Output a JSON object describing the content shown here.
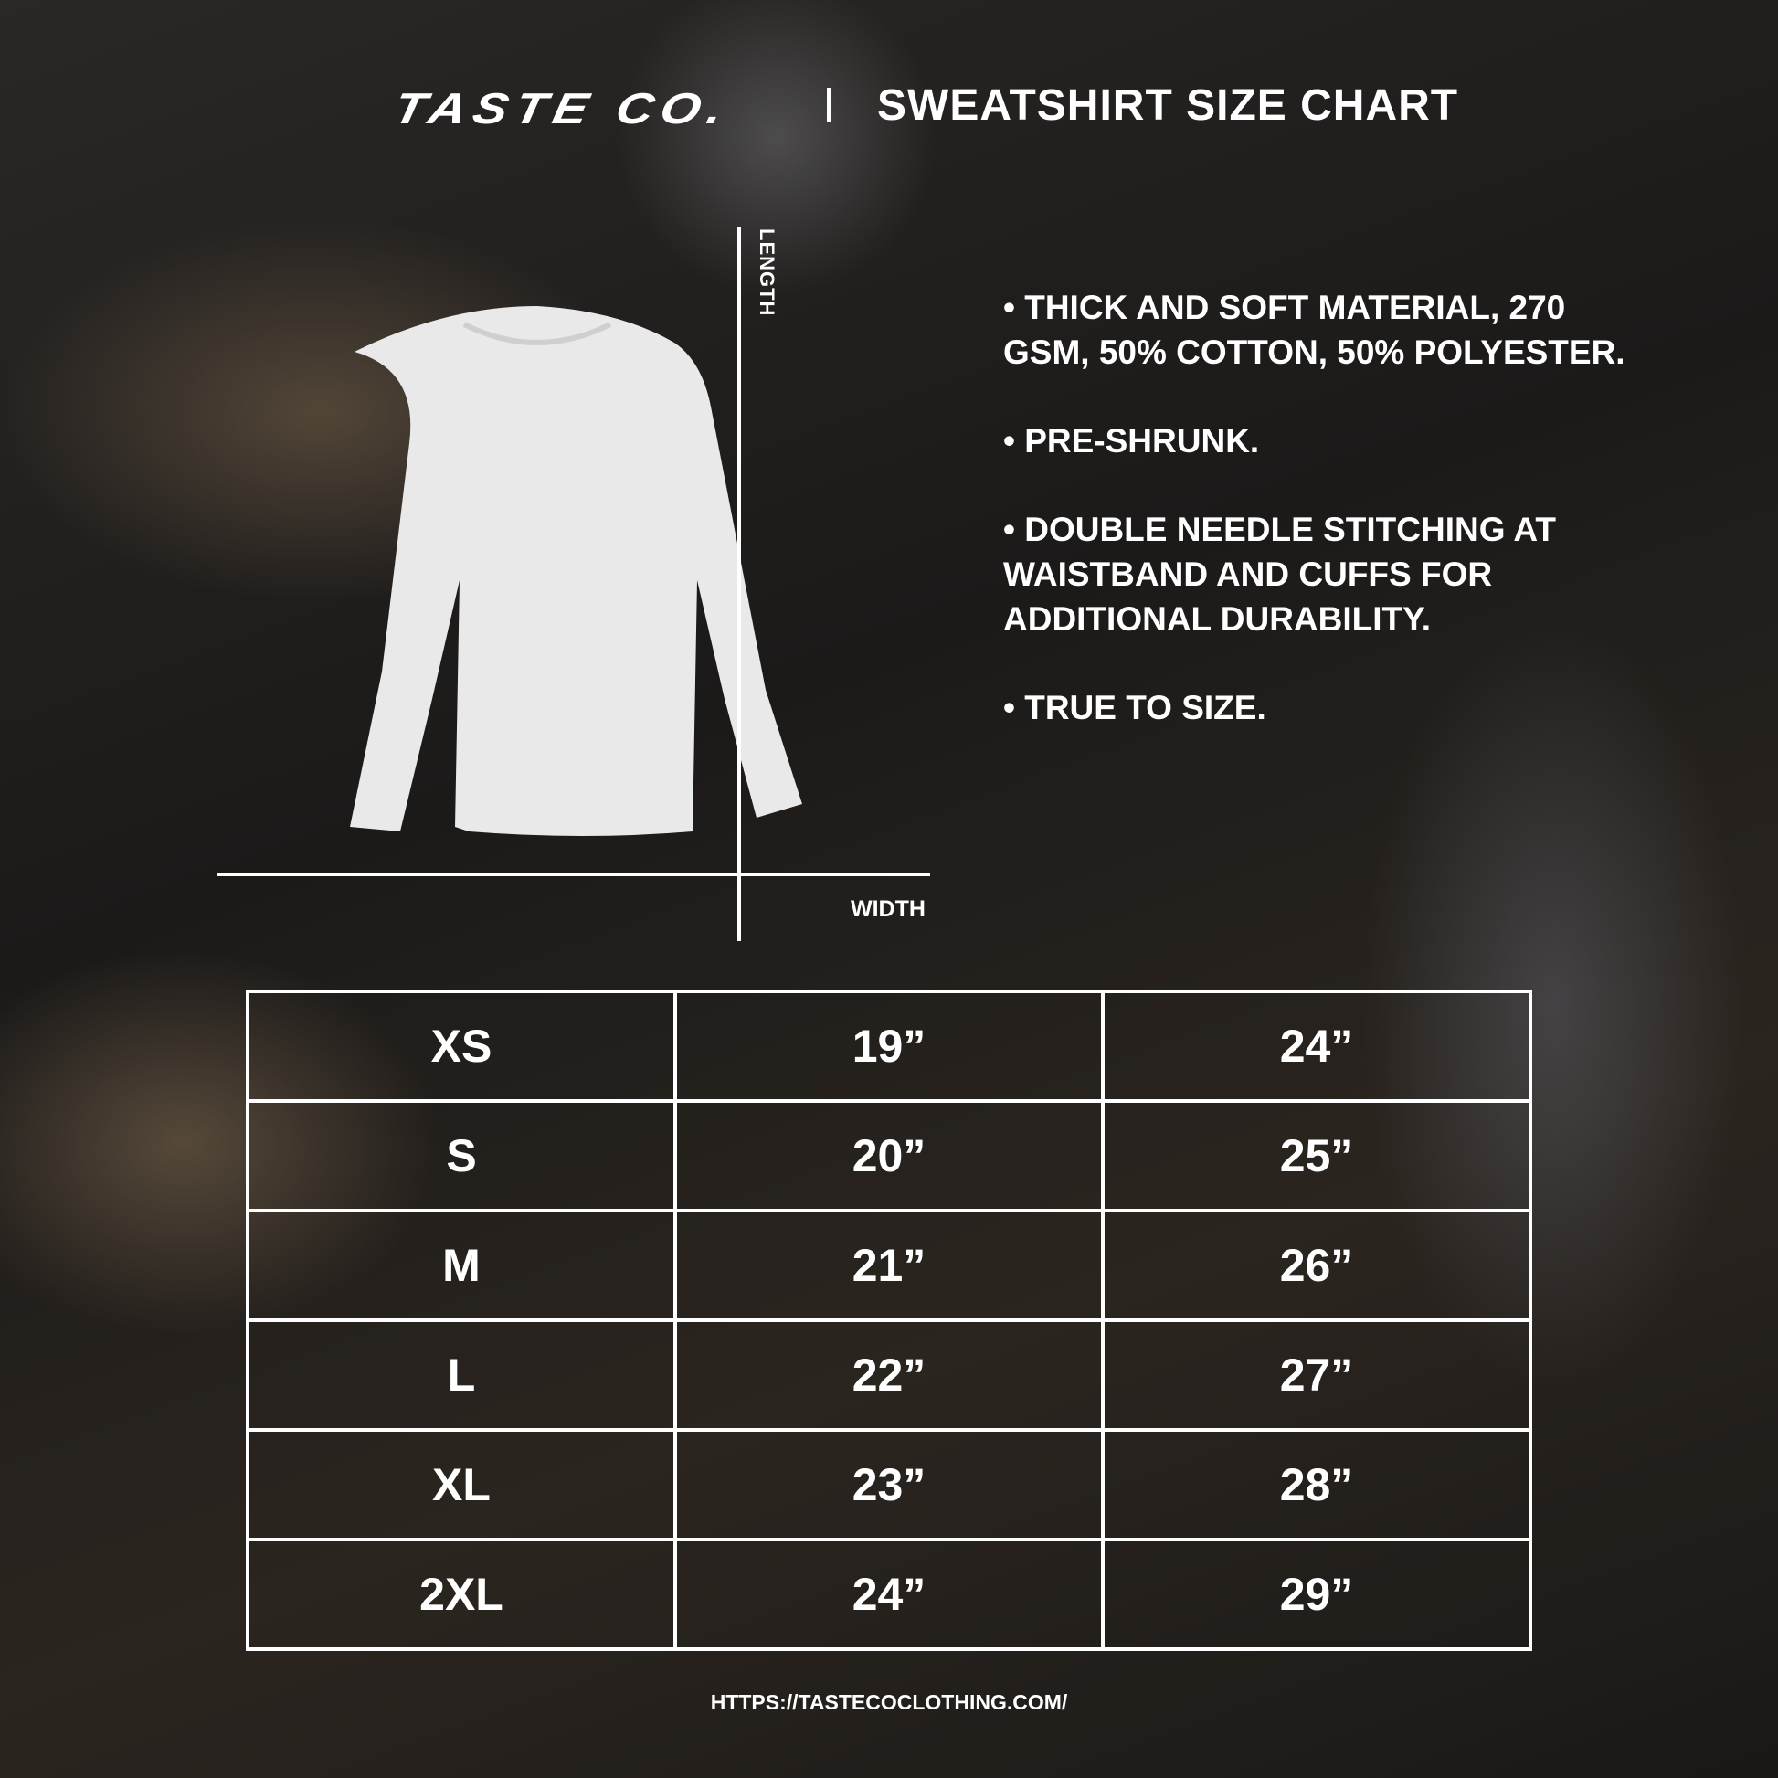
{
  "header": {
    "logo": "TASTE CO.",
    "title": "SWEATSHIRT SIZE CHART"
  },
  "diagram": {
    "length_label": "LENGTH",
    "width_label": "WIDTH"
  },
  "features": [
    "• THICK AND SOFT MATERIAL, 270 GSM, 50% COTTON, 50% POLYESTER.",
    "• PRE-SHRUNK.",
    "• DOUBLE NEEDLE STITCHING AT WAISTBAND AND CUFFS FOR ADDITIONAL DURABILITY.",
    "• TRUE TO SIZE."
  ],
  "size_table": {
    "rows": [
      [
        "XS",
        "19”",
        "24”"
      ],
      [
        "S",
        "20”",
        "25”"
      ],
      [
        "M",
        "21”",
        "26”"
      ],
      [
        "L",
        "22”",
        "27”"
      ],
      [
        "XL",
        "23”",
        "28”"
      ],
      [
        "2XL",
        "24”",
        "29”"
      ]
    ]
  },
  "footer": {
    "url": "HTTPS://TASTECOCLOTHING.COM/"
  }
}
